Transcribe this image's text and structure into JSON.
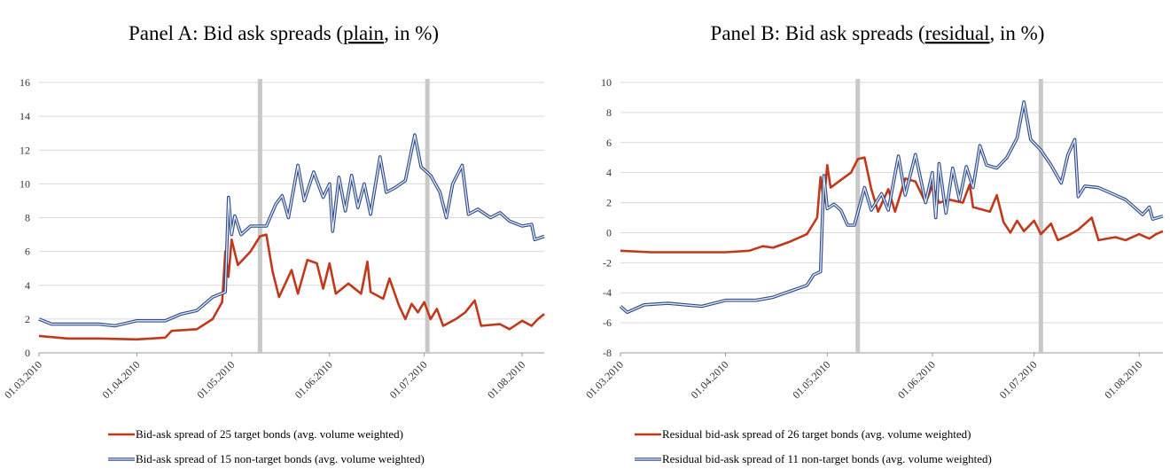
{
  "chart_data": [
    {
      "type": "line",
      "title": [
        "Panel A: Bid ask spreads (",
        "plain",
        ", in %)"
      ],
      "xlim": [
        "01.03.2010",
        "08.08.2010"
      ],
      "xticks": [
        "01.03.2010",
        "01.04.2010",
        "01.05.2010",
        "01.06.2010",
        "01.07.2010",
        "01.08.2010"
      ],
      "ylim": [
        0,
        16
      ],
      "yticks": [
        0,
        2,
        4,
        6,
        8,
        10,
        12,
        14,
        16
      ],
      "grid": true,
      "vlines": [
        "10.05.2010",
        "02.07.2010"
      ],
      "series": [
        {
          "name": "Bid-ask spread of 25 target bonds (avg. volume weighted)",
          "color": "#c0391b",
          "style": "solid",
          "x": [
            "01.03.2010",
            "10.03.2010",
            "20.03.2010",
            "01.04.2010",
            "10.04.2010",
            "12.04.2010",
            "20.04.2010",
            "25.04.2010",
            "28.04.2010",
            "29.04.2010",
            "30.04.2010",
            "01.05.2010",
            "03.05.2010",
            "07.05.2010",
            "10.05.2010",
            "12.05.2010",
            "14.05.2010",
            "16.05.2010",
            "20.05.2010",
            "22.05.2010",
            "25.05.2010",
            "28.05.2010",
            "30.05.2010",
            "01.06.2010",
            "03.06.2010",
            "07.06.2010",
            "11.06.2010",
            "13.06.2010",
            "14.06.2010",
            "18.06.2010",
            "20.06.2010",
            "23.06.2010",
            "25.06.2010",
            "27.06.2010",
            "29.06.2010",
            "01.07.2010",
            "03.07.2010",
            "05.07.2010",
            "07.07.2010",
            "11.07.2010",
            "14.07.2010",
            "17.07.2010",
            "19.07.2010",
            "25.07.2010",
            "28.07.2010",
            "01.08.2010",
            "04.08.2010",
            "06.08.2010",
            "08.08.2010"
          ],
          "values": [
            1.0,
            0.85,
            0.85,
            0.8,
            0.9,
            1.3,
            1.4,
            2.0,
            3.0,
            6.0,
            4.5,
            6.7,
            5.2,
            6.0,
            6.9,
            7.0,
            4.8,
            3.3,
            4.9,
            3.5,
            5.5,
            5.3,
            3.8,
            5.3,
            3.5,
            4.1,
            3.5,
            5.4,
            3.6,
            3.2,
            4.4,
            2.8,
            2.0,
            2.9,
            2.4,
            3.0,
            2.0,
            2.6,
            1.6,
            2.0,
            2.4,
            3.1,
            1.6,
            1.7,
            1.4,
            1.9,
            1.6,
            2.0,
            2.3
          ]
        },
        {
          "name": "Bid-ask spread of 15 non-target bonds (avg. volume weighted)",
          "color": "#2f4d8c",
          "style": "double",
          "x": [
            "01.03.2010",
            "05.03.2010",
            "20.03.2010",
            "25.03.2010",
            "01.04.2010",
            "10.04.2010",
            "15.04.2010",
            "20.04.2010",
            "25.04.2010",
            "29.04.2010",
            "30.04.2010",
            "01.05.2010",
            "02.05.2010",
            "04.05.2010",
            "07.05.2010",
            "12.05.2010",
            "15.05.2010",
            "17.05.2010",
            "19.05.2010",
            "22.05.2010",
            "24.05.2010",
            "27.05.2010",
            "30.05.2010",
            "01.06.2010",
            "02.06.2010",
            "04.06.2010",
            "06.06.2010",
            "08.06.2010",
            "10.06.2010",
            "12.06.2010",
            "14.06.2010",
            "17.06.2010",
            "19.06.2010",
            "22.06.2010",
            "25.06.2010",
            "28.06.2010",
            "30.06.2010",
            "03.07.2010",
            "06.07.2010",
            "08.07.2010",
            "10.07.2010",
            "13.07.2010",
            "15.07.2010",
            "18.07.2010",
            "22.07.2010",
            "25.07.2010",
            "28.07.2010",
            "01.08.2010",
            "04.08.2010",
            "05.08.2010",
            "08.08.2010"
          ],
          "values": [
            2.0,
            1.7,
            1.7,
            1.6,
            1.9,
            1.9,
            2.3,
            2.5,
            3.3,
            3.6,
            9.2,
            7.0,
            8.1,
            7.0,
            7.5,
            7.5,
            8.8,
            9.3,
            8.0,
            11.1,
            9.0,
            10.7,
            9.2,
            10.0,
            7.2,
            10.4,
            8.4,
            10.5,
            8.6,
            10.0,
            8.2,
            11.6,
            9.5,
            9.8,
            10.2,
            12.9,
            11.0,
            10.5,
            9.5,
            8.0,
            10.0,
            11.1,
            8.2,
            8.5,
            8.0,
            8.3,
            7.8,
            7.5,
            7.6,
            6.7,
            6.9
          ]
        }
      ]
    },
    {
      "type": "line",
      "title": [
        "Panel B: Bid ask spreads (",
        "residual",
        ", in %)"
      ],
      "xlim": [
        "01.03.2010",
        "08.08.2010"
      ],
      "xticks": [
        "01.03.2010",
        "01.04.2010",
        "01.05.2010",
        "01.06.2010",
        "01.07.2010",
        "01.08.2010"
      ],
      "ylim": [
        -8,
        10
      ],
      "yticks": [
        -8,
        -6,
        -4,
        -2,
        0,
        2,
        4,
        6,
        8,
        10
      ],
      "grid": true,
      "vlines": [
        "10.05.2010",
        "03.07.2010"
      ],
      "series": [
        {
          "name": "Residual bid-ask spread of 26 target bonds (avg. volume weighted)",
          "color": "#c0391b",
          "style": "solid",
          "x": [
            "01.03.2010",
            "10.03.2010",
            "20.03.2010",
            "01.04.2010",
            "08.04.2010",
            "12.04.2010",
            "15.04.2010",
            "20.04.2010",
            "25.04.2010",
            "28.04.2010",
            "29.04.2010",
            "30.04.2010",
            "01.05.2010",
            "02.05.2010",
            "05.05.2010",
            "08.05.2010",
            "10.05.2010",
            "12.05.2010",
            "14.05.2010",
            "16.05.2010",
            "19.05.2010",
            "21.05.2010",
            "24.05.2010",
            "27.05.2010",
            "30.05.2010",
            "01.06.2010",
            "03.06.2010",
            "06.06.2010",
            "10.06.2010",
            "12.06.2010",
            "13.06.2010",
            "18.06.2010",
            "20.06.2010",
            "22.06.2010",
            "24.06.2010",
            "26.06.2010",
            "28.06.2010",
            "01.07.2010",
            "03.07.2010",
            "06.07.2010",
            "08.07.2010",
            "11.07.2010",
            "14.07.2010",
            "18.07.2010",
            "20.07.2010",
            "25.07.2010",
            "28.07.2010",
            "01.08.2010",
            "04.08.2010",
            "06.08.2010",
            "08.08.2010"
          ],
          "values": [
            -1.2,
            -1.3,
            -1.3,
            -1.3,
            -1.2,
            -0.9,
            -1.0,
            -0.6,
            -0.1,
            1.0,
            3.7,
            2.0,
            4.5,
            3.0,
            3.5,
            4.0,
            4.9,
            5.0,
            2.9,
            1.4,
            2.9,
            1.4,
            3.6,
            3.4,
            2.0,
            3.1,
            2.0,
            2.2,
            2.0,
            3.2,
            1.7,
            1.4,
            2.5,
            0.7,
            0.0,
            0.8,
            0.1,
            0.8,
            -0.1,
            0.6,
            -0.5,
            -0.2,
            0.2,
            1.0,
            -0.5,
            -0.3,
            -0.5,
            -0.1,
            -0.4,
            -0.1,
            0.1
          ]
        },
        {
          "name": "Residual bid-ask spread of 11 non-target bonds (avg. volume weighted)",
          "color": "#2f4d8c",
          "style": "double",
          "x": [
            "01.03.2010",
            "03.03.2010",
            "08.03.2010",
            "15.03.2010",
            "20.03.2010",
            "25.03.2010",
            "01.04.2010",
            "10.04.2010",
            "15.04.2010",
            "20.04.2010",
            "25.04.2010",
            "27.04.2010",
            "29.04.2010",
            "30.04.2010",
            "01.05.2010",
            "03.05.2010",
            "05.05.2010",
            "07.05.2010",
            "09.05.2010",
            "12.05.2010",
            "14.05.2010",
            "17.05.2010",
            "19.05.2010",
            "22.05.2010",
            "24.05.2010",
            "27.05.2010",
            "30.05.2010",
            "01.06.2010",
            "02.06.2010",
            "03.06.2010",
            "05.06.2010",
            "07.06.2010",
            "09.06.2010",
            "11.06.2010",
            "13.06.2010",
            "15.06.2010",
            "17.06.2010",
            "20.06.2010",
            "23.06.2010",
            "26.06.2010",
            "28.06.2010",
            "30.06.2010",
            "03.07.2010",
            "06.07.2010",
            "09.07.2010",
            "11.07.2010",
            "13.07.2010",
            "14.07.2010",
            "16.07.2010",
            "20.07.2010",
            "24.07.2010",
            "28.07.2010",
            "30.07.2010",
            "02.08.2010",
            "04.08.2010",
            "05.08.2010",
            "08.08.2010"
          ],
          "values": [
            -4.9,
            -5.3,
            -4.8,
            -4.7,
            -4.8,
            -4.9,
            -4.5,
            -4.5,
            -4.3,
            -3.9,
            -3.5,
            -2.8,
            -2.6,
            3.8,
            1.6,
            1.9,
            1.5,
            0.5,
            0.5,
            3.0,
            1.5,
            2.6,
            1.5,
            5.1,
            2.5,
            5.2,
            2.0,
            4.0,
            1.0,
            4.6,
            1.3,
            4.3,
            2.2,
            4.4,
            3.0,
            5.8,
            4.5,
            4.3,
            5.0,
            6.3,
            8.7,
            6.2,
            5.5,
            4.5,
            3.3,
            5.2,
            6.2,
            2.4,
            3.1,
            3.0,
            2.6,
            2.2,
            1.8,
            1.2,
            1.7,
            0.9,
            1.1
          ]
        }
      ]
    }
  ]
}
